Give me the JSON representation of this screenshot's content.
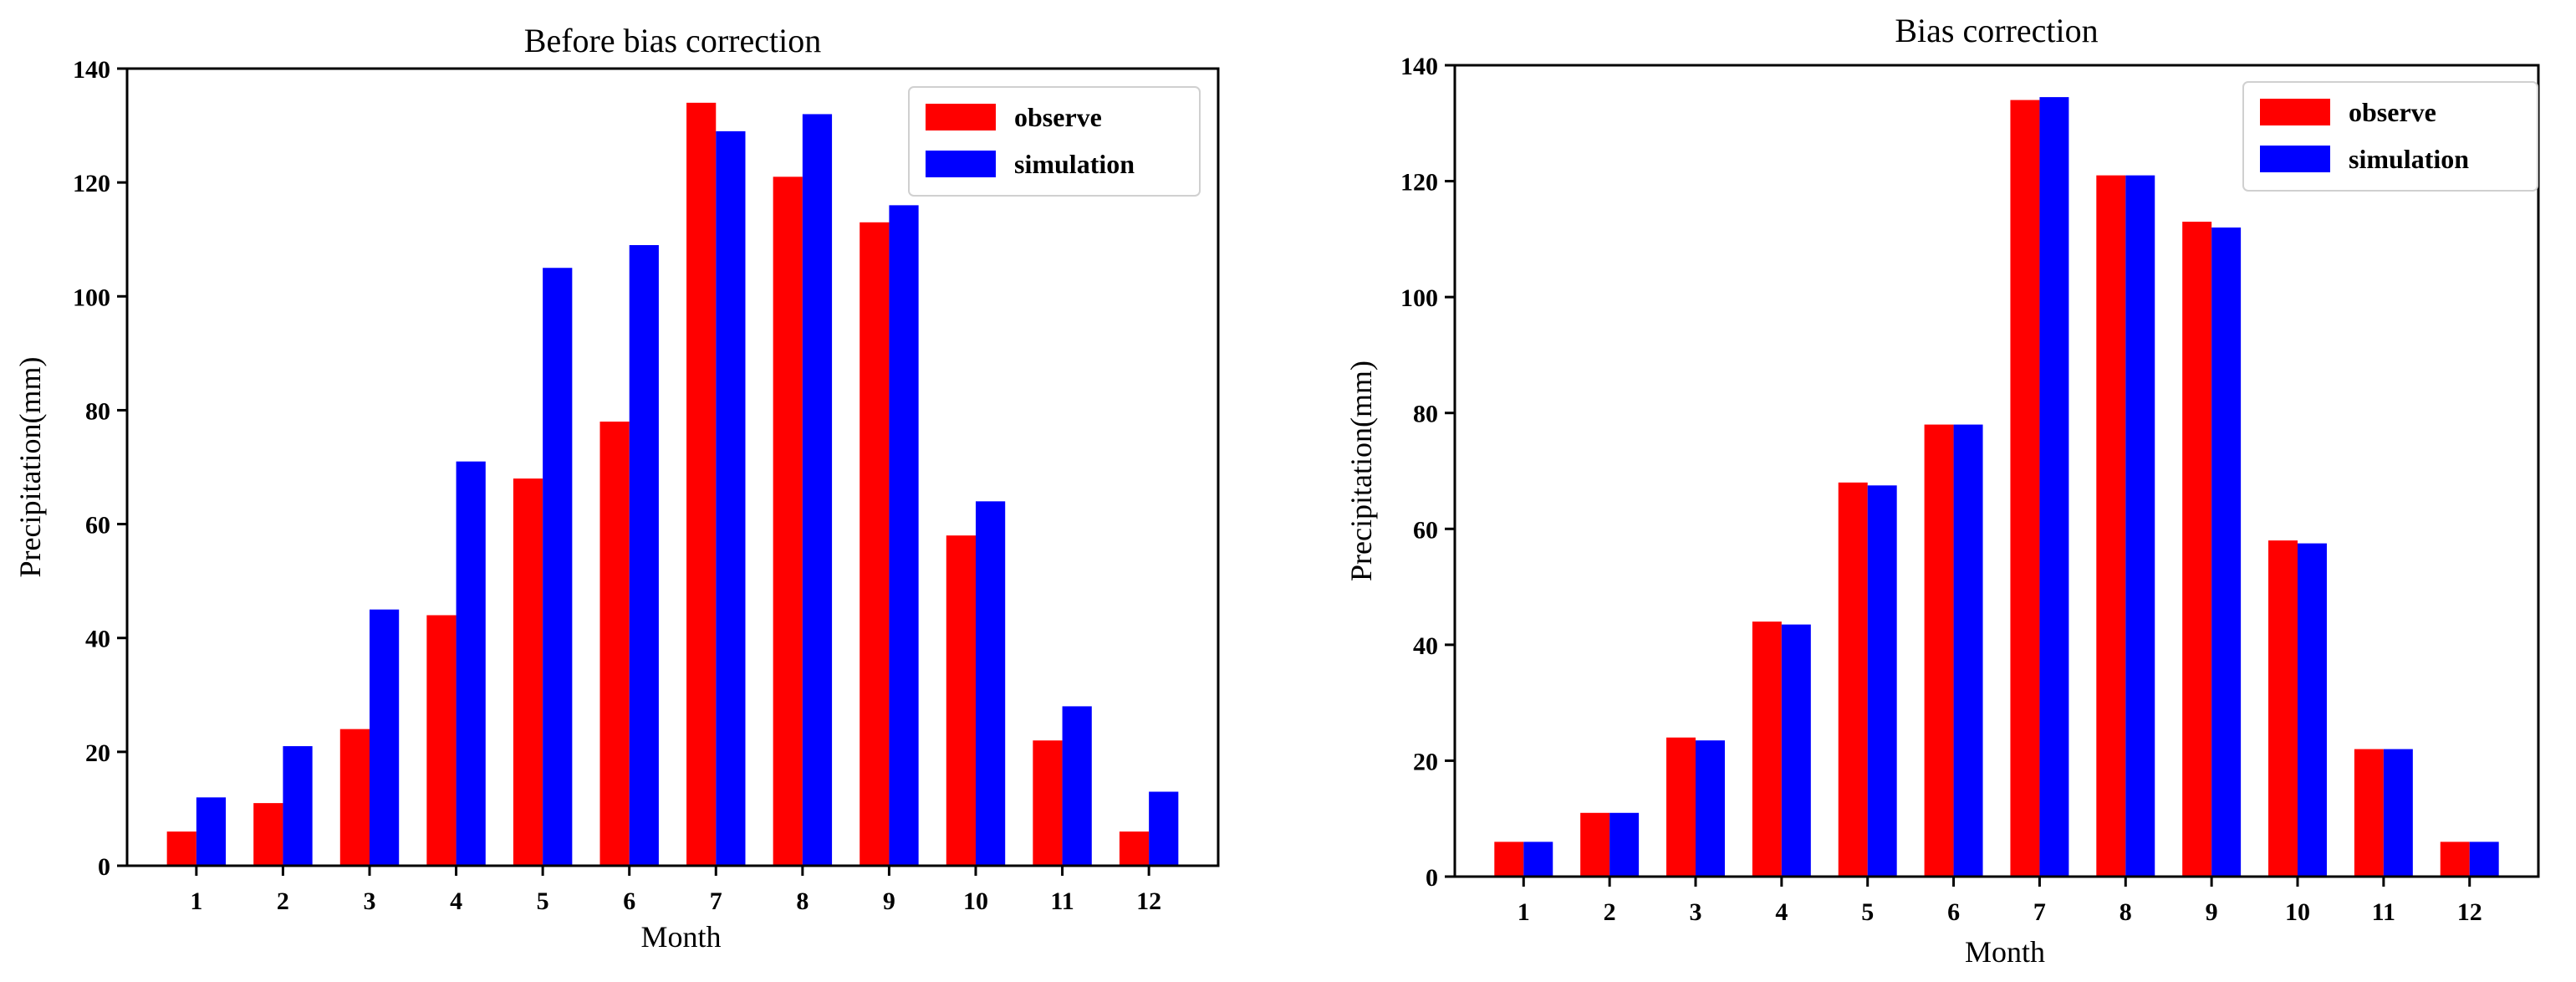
{
  "charts": [
    {
      "chart_data": {
        "type": "bar",
        "title": "Before bias correction",
        "xlabel": "Month",
        "ylabel": "Precipitation(mm)",
        "categories": [
          "1",
          "2",
          "3",
          "4",
          "5",
          "6",
          "7",
          "8",
          "9",
          "10",
          "11",
          "12"
        ],
        "ylim": [
          0,
          140
        ],
        "yticks": [
          0,
          20,
          40,
          60,
          80,
          100,
          120,
          140
        ],
        "legend_position": "top-right",
        "series": [
          {
            "name": "observe",
            "color": "#ff0000",
            "values": [
              6,
              11,
              24,
              44,
              68,
              78,
              134,
              121,
              113,
              58,
              22,
              6
            ]
          },
          {
            "name": "simulation",
            "color": "#0000ff",
            "values": [
              12,
              21,
              45,
              71,
              105,
              109,
              129,
              132,
              116,
              64,
              28,
              13
            ]
          }
        ]
      }
    },
    {
      "chart_data": {
        "type": "bar",
        "title": "Bias correction",
        "xlabel": "Month",
        "ylabel": "Precipitation(mm)",
        "categories": [
          "1",
          "2",
          "3",
          "4",
          "5",
          "6",
          "7",
          "8",
          "9",
          "10",
          "11",
          "12"
        ],
        "ylim": [
          0,
          140
        ],
        "yticks": [
          0,
          20,
          40,
          60,
          80,
          100,
          120,
          140
        ],
        "legend_position": "top-right",
        "series": [
          {
            "name": "observe",
            "color": "#ff0000",
            "values": [
              6,
              11,
              24,
              44,
              68,
              78,
              134,
              121,
              113,
              58,
              22,
              6
            ]
          },
          {
            "name": "simulation",
            "color": "#0000ff",
            "values": [
              6,
              11,
              23.5,
              43.5,
              67.5,
              78,
              134.5,
              121,
              112,
              57.5,
              22,
              6
            ]
          }
        ]
      }
    }
  ]
}
